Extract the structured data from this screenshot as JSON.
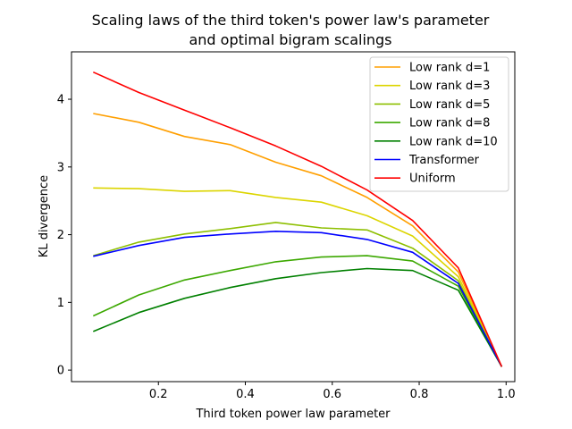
{
  "chart_data": {
    "type": "line",
    "title_line1": "Scaling laws of the third token's power law's parameter",
    "title_line2": "and optimal bigram scalings",
    "xlabel": "Third token power law parameter",
    "ylabel": "KL divergence",
    "xlim": [
      0.0,
      1.02
    ],
    "ylim": [
      -0.17,
      4.7
    ],
    "xticks": [
      0.2,
      0.4,
      0.6,
      0.8,
      1.0
    ],
    "xtick_labels": [
      "0.2",
      "0.4",
      "0.6",
      "0.8",
      "1.0"
    ],
    "yticks": [
      0,
      1,
      2,
      3,
      4
    ],
    "ytick_labels": [
      "0",
      "1",
      "2",
      "3",
      "4"
    ],
    "grid": false,
    "legend_position": "top-right",
    "x": [
      0.05,
      0.155,
      0.26,
      0.365,
      0.47,
      0.575,
      0.68,
      0.785,
      0.89,
      0.99
    ],
    "series": [
      {
        "name": "Low rank d=1",
        "color": "#ff9f00",
        "values": [
          3.79,
          3.66,
          3.45,
          3.33,
          3.07,
          2.87,
          2.55,
          2.13,
          1.45,
          0.05
        ]
      },
      {
        "name": "Low rank d=3",
        "color": "#dcd500",
        "values": [
          2.69,
          2.68,
          2.64,
          2.65,
          2.55,
          2.48,
          2.28,
          1.98,
          1.38,
          0.05
        ]
      },
      {
        "name": "Low rank d=5",
        "color": "#8dbf00",
        "values": [
          1.69,
          1.89,
          2.01,
          2.09,
          2.18,
          2.1,
          2.07,
          1.8,
          1.32,
          0.05
        ]
      },
      {
        "name": "Low rank d=8",
        "color": "#3ca800",
        "values": [
          0.8,
          1.11,
          1.33,
          1.47,
          1.6,
          1.67,
          1.69,
          1.61,
          1.24,
          0.05
        ]
      },
      {
        "name": "Low rank d=10",
        "color": "#008000",
        "values": [
          0.57,
          0.85,
          1.06,
          1.22,
          1.35,
          1.44,
          1.5,
          1.47,
          1.18,
          0.05
        ]
      },
      {
        "name": "Transformer",
        "color": "#0000ff",
        "values": [
          1.68,
          1.84,
          1.96,
          2.01,
          2.05,
          2.03,
          1.93,
          1.74,
          1.28,
          0.05
        ]
      },
      {
        "name": "Uniform",
        "color": "#ff0000",
        "values": [
          4.4,
          4.1,
          3.84,
          3.58,
          3.31,
          3.01,
          2.66,
          2.21,
          1.51,
          0.05
        ]
      }
    ]
  }
}
